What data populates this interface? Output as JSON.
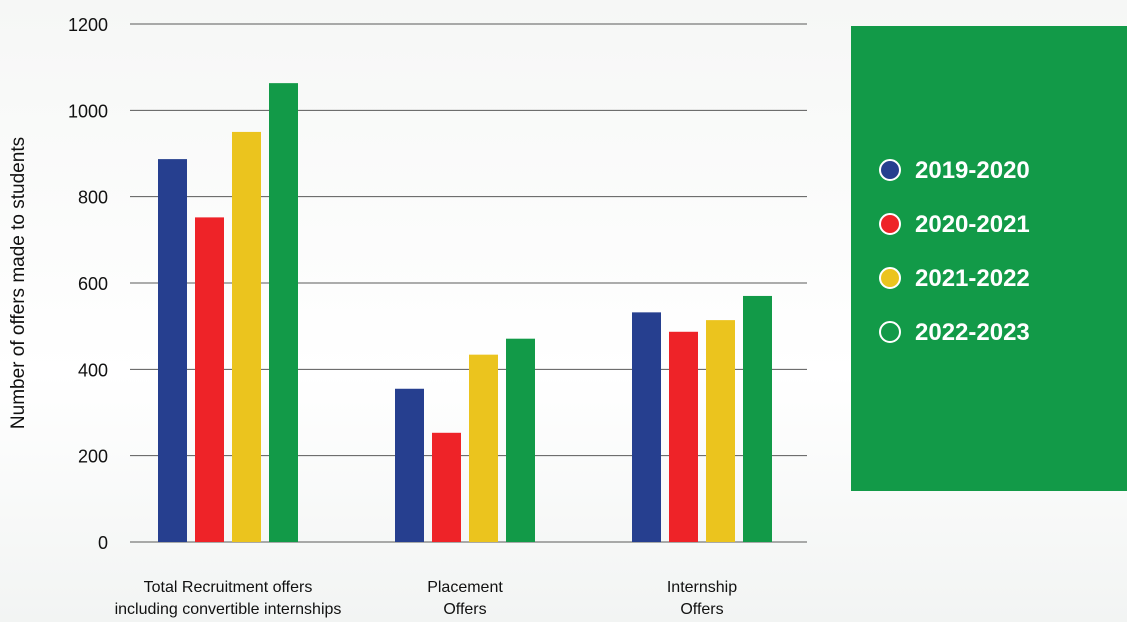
{
  "chart_data": {
    "type": "bar",
    "ylabel": "Number of offers made to students",
    "xlabel": "",
    "ylim": [
      0,
      1200
    ],
    "yticks": [
      0,
      200,
      400,
      600,
      800,
      1000,
      1200
    ],
    "grid": true,
    "legend_position": "right",
    "categories": [
      [
        "Total Recruitment offers",
        "including convertible internships"
      ],
      [
        "Placement",
        "Offers"
      ],
      [
        "Internship",
        "Offers"
      ]
    ],
    "series": [
      {
        "name": "2019-2020",
        "color": "#263f8f",
        "values": [
          887,
          355,
          532
        ]
      },
      {
        "name": "2020-2021",
        "color": "#ee2328",
        "values": [
          752,
          253,
          487
        ]
      },
      {
        "name": "2021-2022",
        "color": "#ebc41e",
        "values": [
          950,
          434,
          514
        ]
      },
      {
        "name": "2022-2023",
        "color": "#129a48",
        "values": [
          1063,
          471,
          570
        ]
      }
    ],
    "legend_panel_color": "#129a48"
  }
}
